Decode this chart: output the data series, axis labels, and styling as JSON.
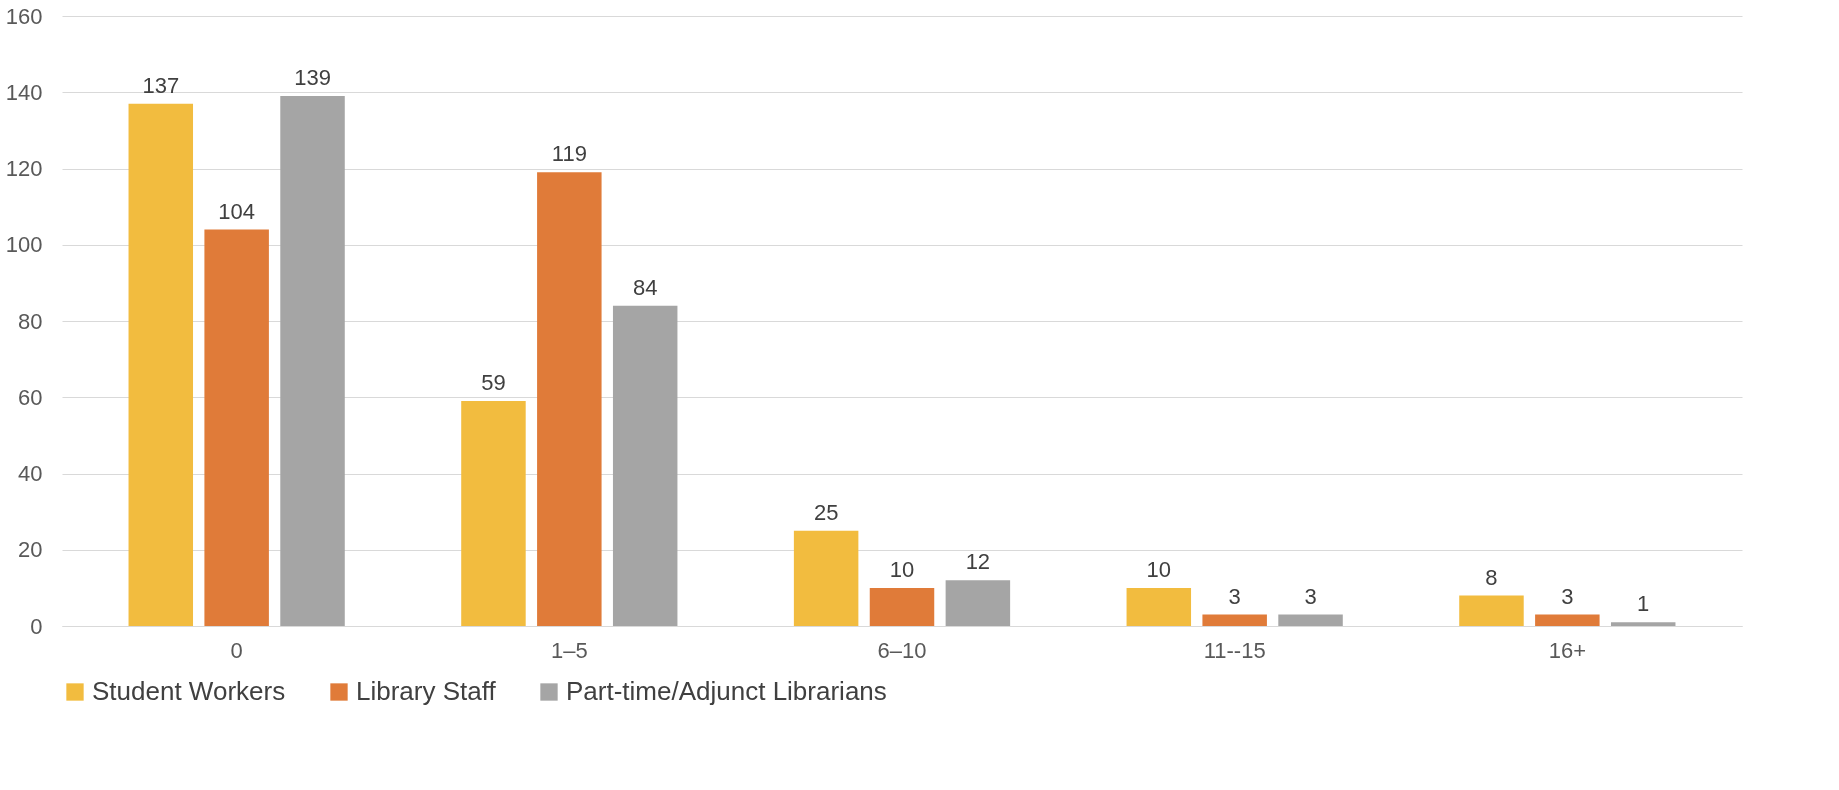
{
  "chart_data": {
    "type": "bar",
    "categories": [
      "0",
      "1–5",
      "6–10",
      "11--15",
      "16+"
    ],
    "series": [
      {
        "name": "Student Workers",
        "color": "#f2bc3f",
        "values": [
          137,
          59,
          25,
          10,
          8
        ]
      },
      {
        "name": "Library Staff",
        "color": "#e07b39",
        "values": [
          104,
          119,
          10,
          3,
          3
        ]
      },
      {
        "name": "Part-time/Adjunct Librarians",
        "color": "#a5a5a5",
        "values": [
          139,
          84,
          12,
          3,
          1
        ]
      }
    ],
    "ylim": [
      0,
      160
    ],
    "yticks": [
      0,
      20,
      40,
      60,
      80,
      100,
      120,
      140,
      160
    ],
    "grid": "y",
    "legend": "bottom",
    "data_labels": true
  }
}
